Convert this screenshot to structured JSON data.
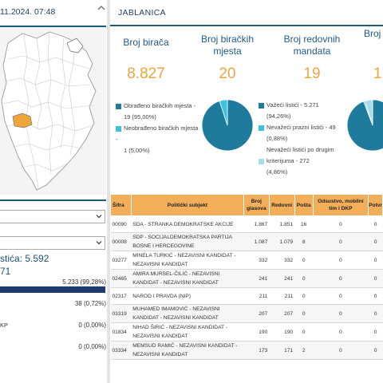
{
  "left_panel": {
    "timestamp": "11.2024. 07:48",
    "total_label": "stića: 5.592",
    "total_sub": "71",
    "valid_value": "5.233 (99,28%)",
    "invalid_value": "38 (0,72%)",
    "dkp_label": "KP",
    "dkp_value": "0 (0,00%)",
    "other_value": "0 (0,00%)",
    "highlight_color": "#f0a53a",
    "bar_fraction": 0.9928
  },
  "header": {
    "title": "JABLANICA"
  },
  "stats": [
    {
      "label": "Broj birača",
      "value": "8.827"
    },
    {
      "label": "Broj biračkih mjesta",
      "value": "20"
    },
    {
      "label": "Broj redovnih mandata",
      "value": "19"
    },
    {
      "label": "Broj m",
      "value": "1"
    }
  ],
  "legend1": {
    "processed": "Obrađeno biračkih mjesta -",
    "processed_val": "19 (95,00%)",
    "unprocessed": "Neobrađeno biračkih mjesta -",
    "unprocessed_val": "1 (5,00%)"
  },
  "legend2": {
    "valid": "Važeći listići - 5.271",
    "valid_val": "(94,26%)",
    "empty": "Nevažeći prazni listići - 49",
    "empty_val": "(0,88%)",
    "other": "Nevažeći listići po drugim",
    "other_val": "kriterijuma - 272",
    "other_pct": "(4,86%)"
  },
  "pie1": {
    "fractions": [
      0.95,
      0.05
    ],
    "colors": [
      "#1f7b9b",
      "#3ec0e0"
    ]
  },
  "pie2": {
    "fractions": [
      0.9426,
      0.0088,
      0.0486
    ],
    "colors": [
      "#1f7b9b",
      "#3ec0e0",
      "#a8dcea"
    ]
  },
  "table": {
    "headers": [
      "Šifra",
      "Politički subjekt",
      "Broj glasova",
      "Redovni",
      "Pošta",
      "Odsustvo, mobilni tim i DKP",
      "Potvr"
    ],
    "rows": [
      [
        "00090",
        "SDA - STRANKA DEMOKRATSKE AKCIJE",
        "1.867",
        "1.851",
        "16",
        "0",
        "0"
      ],
      [
        "00008",
        "SDP - SOCIJALDEMOKRATSKA PARTIJA BOSNE I HERCEGOVINE",
        "1.087",
        "1.079",
        "8",
        "0",
        "0"
      ],
      [
        "03277",
        "MINELA TURKIĆ - NEZAVISNI KANDIDAT - NEZAVISNI KANDIDAT",
        "332",
        "332",
        "0",
        "0",
        "0"
      ],
      [
        "02465",
        "AMIRA MURSEL-ČILIĆ - NEZAVISNI KANDIDAT - NEZAVISNI KANDIDAT",
        "241",
        "241",
        "0",
        "0",
        "0"
      ],
      [
        "02317",
        "NAROD I PRAVDA (NIP)",
        "211",
        "211",
        "0",
        "0",
        "0"
      ],
      [
        "03319",
        "MUHAMED IMAMOVIĆ - NEZAVISNI KANDIDAT - NEZAVISNI KANDIDAT",
        "207",
        "207",
        "0",
        "0",
        "0"
      ],
      [
        "01834",
        "NIHAD ŠIRIĆ - NEZAVISNI KANDIDAT - NEZAVISNI KANDIDAT",
        "190",
        "190",
        "0",
        "0",
        "0"
      ],
      [
        "03334",
        "MEMSUD RAMIĆ - NEZAVISNI KANDIDAT - NEZAVISNI KANDIDAT",
        "173",
        "171",
        "2",
        "0",
        "0"
      ]
    ]
  }
}
